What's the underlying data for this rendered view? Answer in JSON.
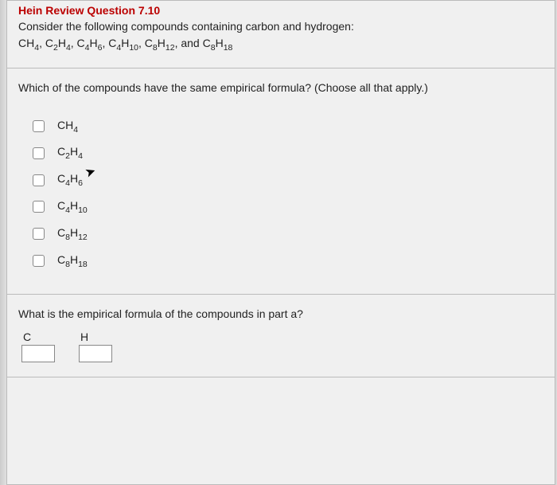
{
  "header": {
    "title_cut": "Hein Review Question 7.10",
    "intro_line1": "Consider the following compounds containing carbon and hydrogen:",
    "compounds": [
      {
        "c": "",
        "h": "",
        "text": "CH",
        "csub": "",
        "hsub": "4"
      },
      {
        "c": "2",
        "h": "4"
      },
      {
        "c": "4",
        "h": "6"
      },
      {
        "c": "4",
        "h": "10"
      },
      {
        "c": "8",
        "h": "12"
      },
      {
        "c": "8",
        "h": "18"
      }
    ],
    "compound_list_prefix": "CH",
    "and_word": "and"
  },
  "partA": {
    "question": "Which of the compounds have the same empirical formula? (Choose all that apply.)",
    "options": [
      {
        "c": "",
        "h": "4",
        "label_c": "",
        "label_h": "4"
      },
      {
        "c": "2",
        "h": "4"
      },
      {
        "c": "4",
        "h": "6"
      },
      {
        "c": "4",
        "h": "10"
      },
      {
        "c": "8",
        "h": "12"
      },
      {
        "c": "8",
        "h": "18"
      }
    ]
  },
  "partB": {
    "question": "What is the empirical formula of the compounds in part a?",
    "elem1": "C",
    "elem2": "H",
    "val1": "",
    "val2": ""
  },
  "colors": {
    "page_bg": "#f0f0f0",
    "border": "#bbbbbb",
    "title_red": "#bb0000",
    "text": "#222222",
    "input_border": "#888888"
  }
}
